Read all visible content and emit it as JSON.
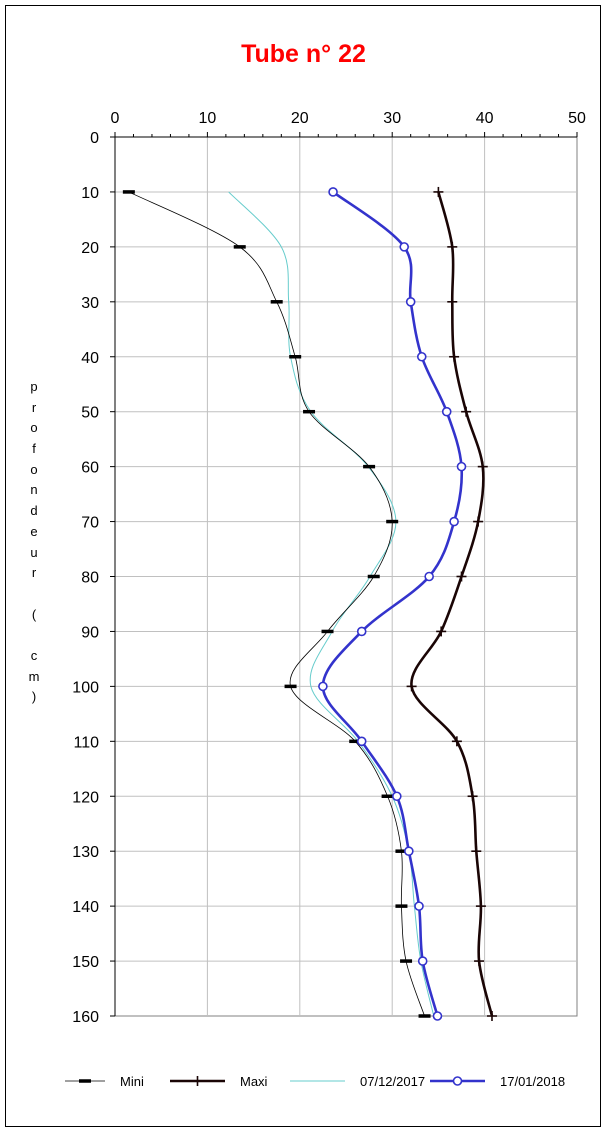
{
  "chart_data": {
    "type": "line",
    "title": "Tube n° 22",
    "ylabel": "profondeur ( cm)",
    "xlabel": "",
    "xlim": [
      0,
      50
    ],
    "ylim": [
      0,
      160
    ],
    "y_inverted": true,
    "x_axis_position": "top",
    "x_ticks": [
      "0",
      "10",
      "20",
      "30",
      "40",
      "50"
    ],
    "y_ticks": [
      "0",
      "10",
      "20",
      "30",
      "40",
      "50",
      "60",
      "70",
      "80",
      "90",
      "100",
      "110",
      "120",
      "130",
      "140",
      "150",
      "160"
    ],
    "grid": true,
    "legend_position": "bottom",
    "series": [
      {
        "name": "Mini",
        "color": "#000000",
        "marker": "dash",
        "depth": [
          10,
          20,
          30,
          40,
          50,
          60,
          70,
          80,
          90,
          100,
          110,
          120,
          130,
          140,
          150,
          160
        ],
        "values": [
          1.5,
          13.5,
          17.5,
          19.5,
          21,
          27.5,
          30,
          28,
          23,
          19,
          26,
          29.5,
          31,
          31,
          31.5,
          33.5
        ]
      },
      {
        "name": "Maxi",
        "color": "#1a0505",
        "marker": "plus",
        "depth": [
          10,
          20,
          30,
          40,
          50,
          60,
          70,
          80,
          90,
          100,
          110,
          120,
          130,
          140,
          150,
          160
        ],
        "values": [
          35,
          36.5,
          36.5,
          36.7,
          38,
          39.8,
          39.3,
          37.5,
          35.3,
          32.1,
          37,
          38.7,
          39.1,
          39.6,
          39.4,
          40.8
        ]
      },
      {
        "name": "07/12/2017",
        "color": "#66cccc",
        "marker": "none",
        "depth": [
          10,
          20,
          30,
          40,
          50,
          60,
          70,
          80,
          90,
          100,
          110,
          120,
          130,
          140,
          150,
          160
        ],
        "values": [
          12.3,
          18,
          18.8,
          19,
          21.2,
          27.4,
          30.4,
          27.6,
          23.5,
          21.2,
          26.3,
          30,
          31.8,
          32.4,
          33.1,
          34.5
        ]
      },
      {
        "name": "17/01/2018",
        "color": "#3333cc",
        "marker": "circle",
        "depth": [
          10,
          20,
          30,
          40,
          50,
          60,
          70,
          80,
          90,
          100,
          110,
          120,
          130,
          140,
          150,
          160
        ],
        "values": [
          23.6,
          31.3,
          32,
          33.2,
          35.9,
          37.5,
          36.7,
          34,
          26.7,
          22.5,
          26.7,
          30.5,
          31.8,
          32.9,
          33.3,
          34.9
        ]
      }
    ]
  }
}
